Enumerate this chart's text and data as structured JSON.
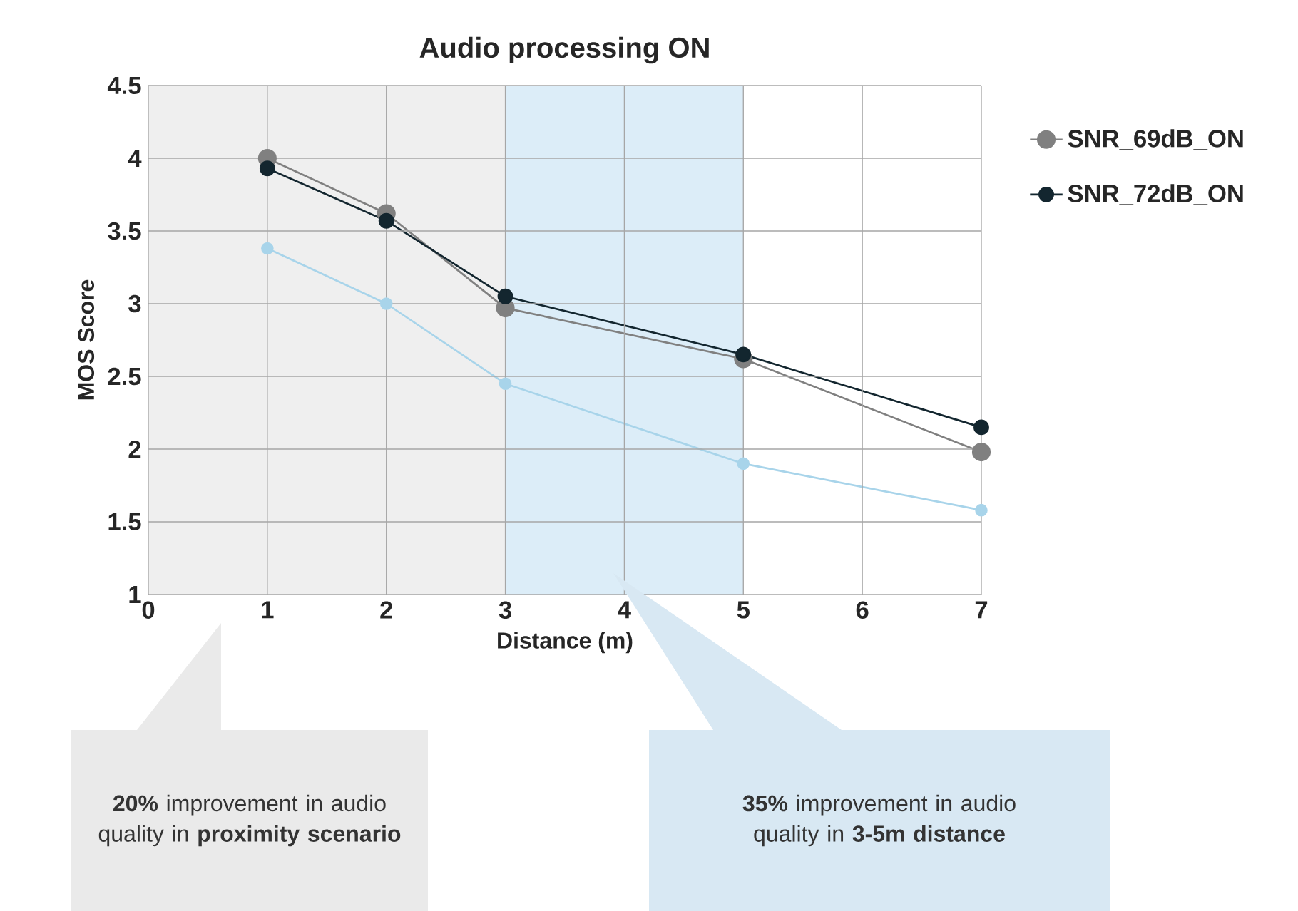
{
  "chart_data": {
    "type": "line",
    "title": "Audio processing ON",
    "xlabel": "Distance (m)",
    "ylabel": "MOS Score",
    "x": [
      1,
      2,
      3,
      5,
      7
    ],
    "series": [
      {
        "name": "SNR_69dB_ON",
        "color": "#808080",
        "values": [
          4.0,
          3.62,
          2.97,
          2.62,
          1.98
        ]
      },
      {
        "name": "SNR_72dB_ON",
        "color": "#13262f",
        "values": [
          3.93,
          3.57,
          3.05,
          2.65,
          2.15
        ]
      },
      {
        "color": "#a8d4ea",
        "values": [
          3.38,
          3.0,
          2.45,
          1.9,
          1.58
        ]
      }
    ],
    "xlim": [
      0,
      7
    ],
    "ylim": [
      1,
      4.5
    ],
    "xticks": [
      0,
      1,
      2,
      3,
      4,
      5,
      6,
      7
    ],
    "yticks": [
      1,
      1.5,
      2,
      2.5,
      3,
      3.5,
      4,
      4.5
    ],
    "bands": [
      {
        "axis": "x",
        "from": 0,
        "to": 3,
        "color": "#efefef"
      },
      {
        "axis": "x",
        "from": 3,
        "to": 5,
        "color": "#dcedf8"
      }
    ],
    "annotations": [
      "**20%** improvement in audio quality in **proximity scenario**",
      "**35%** improvement in audio quality in **3-5m distance**"
    ],
    "grid": true,
    "legend": "right",
    "marker": "circle",
    "line_style": "solid"
  }
}
